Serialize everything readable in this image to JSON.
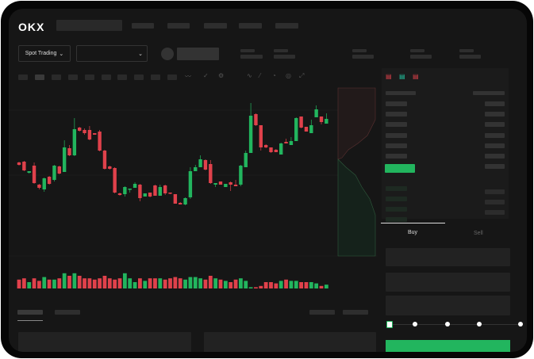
{
  "header": {
    "logo": "OKX",
    "nav_placeholder_count": 5
  },
  "controls": {
    "mode_button": "Spot Trading",
    "mode_chevron": "chevron-down-icon",
    "pair_select_chevron": "chevron-down-icon"
  },
  "toolbar": {
    "icons": [
      "candle-type-icon",
      "indicator-icon",
      "settings-icon",
      "line-icon",
      "ruler-icon",
      "camera-icon",
      "target-icon",
      "fullscreen-icon"
    ]
  },
  "orderbook": {
    "view_icons": [
      "both-sides-icon",
      "bids-only-icon",
      "asks-only-icon"
    ]
  },
  "trade": {
    "buy_label": "Buy",
    "sell_label": "Sell",
    "leverage_slider": {
      "value": 0,
      "stops": 5
    },
    "submit_color": "#22b55e"
  },
  "colors": {
    "up": "#22b55e",
    "down": "#e0414b",
    "background": "#161616"
  },
  "chart_data": {
    "type": "candlestick",
    "candles": [
      [
        96,
        97,
        92,
        93
      ],
      [
        97,
        98,
        85,
        86
      ],
      [
        83,
        85,
        82,
        85
      ],
      [
        92,
        96,
        69,
        70
      ],
      [
        68,
        69,
        62,
        64
      ],
      [
        62,
        77,
        59,
        76
      ],
      [
        78,
        79,
        68,
        69
      ],
      [
        74,
        93,
        72,
        92
      ],
      [
        91,
        92,
        81,
        82
      ],
      [
        84,
        124,
        84,
        115
      ],
      [
        114,
        118,
        104,
        105
      ],
      [
        105,
        152,
        104,
        138
      ],
      [
        140,
        141,
        135,
        136
      ],
      [
        137,
        139,
        131,
        133
      ],
      [
        137,
        142,
        124,
        125
      ],
      [
        133,
        133,
        131,
        131
      ],
      [
        135,
        137,
        110,
        111
      ],
      [
        111,
        112,
        87,
        88
      ],
      [
        91,
        92,
        87,
        88
      ],
      [
        89,
        90,
        57,
        58
      ],
      [
        57,
        58,
        54,
        55
      ],
      [
        56,
        66,
        53,
        65
      ],
      [
        62,
        63,
        58,
        63
      ],
      [
        64,
        71,
        64,
        69
      ],
      [
        68,
        69,
        47,
        51
      ],
      [
        53,
        57,
        53,
        57
      ],
      [
        58,
        58,
        52,
        53
      ],
      [
        67,
        68,
        54,
        54
      ],
      [
        54,
        68,
        54,
        65
      ],
      [
        67,
        68,
        55,
        57
      ],
      [
        58,
        58,
        56,
        57
      ],
      [
        56,
        56,
        44,
        44
      ],
      [
        45,
        46,
        43,
        43
      ],
      [
        43,
        52,
        42,
        51
      ],
      [
        52,
        90,
        50,
        85
      ],
      [
        85,
        93,
        85,
        90
      ],
      [
        90,
        105,
        90,
        100
      ],
      [
        99,
        100,
        86,
        87
      ],
      [
        94,
        99,
        69,
        70
      ],
      [
        68,
        70,
        65,
        70
      ],
      [
        72,
        72,
        68,
        68
      ],
      [
        65,
        69,
        65,
        69
      ],
      [
        71,
        72,
        60,
        68
      ],
      [
        68,
        74,
        66,
        66
      ],
      [
        68,
        93,
        66,
        92
      ],
      [
        90,
        111,
        90,
        108
      ],
      [
        108,
        171,
        108,
        155
      ],
      [
        157,
        158,
        142,
        143
      ],
      [
        143,
        143,
        111,
        115
      ],
      [
        118,
        119,
        114,
        115
      ],
      [
        115,
        115,
        108,
        109
      ],
      [
        112,
        113,
        109,
        109
      ],
      [
        106,
        121,
        106,
        120
      ],
      [
        122,
        126,
        120,
        120
      ],
      [
        118,
        128,
        118,
        123
      ],
      [
        123,
        153,
        123,
        152
      ],
      [
        154,
        154,
        139,
        140
      ],
      [
        141,
        141,
        135,
        135
      ],
      [
        133,
        150,
        133,
        143
      ],
      [
        153,
        168,
        153,
        163
      ],
      [
        154,
        154,
        144,
        147
      ],
      [
        145,
        158,
        145,
        151
      ]
    ],
    "volume": [
      7,
      8,
      5,
      8,
      6,
      9,
      7,
      7,
      8,
      12,
      10,
      12,
      10,
      8,
      8,
      7,
      8,
      10,
      8,
      7,
      8,
      12,
      8,
      5,
      8,
      6,
      8,
      8,
      8,
      7,
      8,
      9,
      8,
      7,
      9,
      9,
      8,
      7,
      10,
      8,
      7,
      6,
      5,
      7,
      8,
      6,
      1,
      1,
      2,
      5,
      5,
      4,
      6,
      7,
      6,
      6,
      5,
      5,
      5,
      4,
      2,
      3
    ],
    "ylim": [
      30,
      190
    ]
  }
}
